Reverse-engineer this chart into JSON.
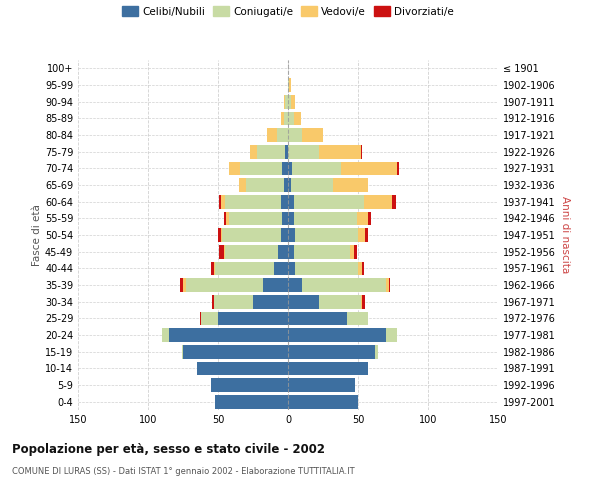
{
  "age_groups": [
    "0-4",
    "5-9",
    "10-14",
    "15-19",
    "20-24",
    "25-29",
    "30-34",
    "35-39",
    "40-44",
    "45-49",
    "50-54",
    "55-59",
    "60-64",
    "65-69",
    "70-74",
    "75-79",
    "80-84",
    "85-89",
    "90-94",
    "95-99",
    "100+"
  ],
  "birth_years": [
    "1997-2001",
    "1992-1996",
    "1987-1991",
    "1982-1986",
    "1977-1981",
    "1972-1976",
    "1967-1971",
    "1962-1966",
    "1957-1961",
    "1952-1956",
    "1947-1951",
    "1942-1946",
    "1937-1941",
    "1932-1936",
    "1927-1931",
    "1922-1926",
    "1917-1921",
    "1912-1916",
    "1907-1911",
    "1902-1906",
    "≤ 1901"
  ],
  "male_celibi": [
    52,
    55,
    65,
    75,
    85,
    50,
    25,
    18,
    10,
    7,
    5,
    4,
    5,
    3,
    4,
    2,
    0,
    0,
    0,
    0,
    0
  ],
  "male_coniugati": [
    0,
    0,
    0,
    1,
    5,
    12,
    28,
    55,
    42,
    38,
    42,
    38,
    40,
    27,
    30,
    20,
    8,
    3,
    2,
    0,
    0
  ],
  "male_vedovi": [
    0,
    0,
    0,
    0,
    0,
    0,
    0,
    2,
    1,
    1,
    1,
    2,
    3,
    5,
    8,
    5,
    7,
    2,
    1,
    0,
    0
  ],
  "male_divorziati": [
    0,
    0,
    0,
    0,
    0,
    1,
    1,
    2,
    2,
    3,
    2,
    2,
    1,
    0,
    0,
    0,
    0,
    0,
    0,
    0,
    0
  ],
  "female_celibi": [
    50,
    48,
    57,
    62,
    70,
    42,
    22,
    10,
    5,
    4,
    5,
    4,
    4,
    2,
    3,
    0,
    0,
    0,
    0,
    0,
    0
  ],
  "female_coniugati": [
    0,
    0,
    0,
    2,
    8,
    15,
    30,
    60,
    45,
    40,
    45,
    45,
    50,
    30,
    35,
    22,
    10,
    4,
    2,
    1,
    0
  ],
  "female_vedovi": [
    0,
    0,
    0,
    0,
    0,
    0,
    1,
    2,
    3,
    3,
    5,
    8,
    20,
    25,
    40,
    30,
    15,
    5,
    3,
    1,
    0
  ],
  "female_divorziati": [
    0,
    0,
    0,
    0,
    0,
    0,
    2,
    1,
    1,
    2,
    2,
    2,
    3,
    0,
    1,
    1,
    0,
    0,
    0,
    0,
    0
  ],
  "colors": {
    "celibi": "#3d6fa0",
    "coniugati": "#c8dba4",
    "vedovi": "#f9c96a",
    "divorziati": "#cc1111"
  },
  "title": "Popolazione per età, sesso e stato civile - 2002",
  "subtitle": "COMUNE DI LURAS (SS) - Dati ISTAT 1° gennaio 2002 - Elaborazione TUTTITALIA.IT",
  "ylabel_left": "Fasce di età",
  "ylabel_right": "Anni di nascita",
  "xlim": 150,
  "legend_labels": [
    "Celibi/Nubili",
    "Coniugati/e",
    "Vedovi/e",
    "Divorziati/e"
  ],
  "bg_color": "#ffffff",
  "grid_color": "#cccccc"
}
